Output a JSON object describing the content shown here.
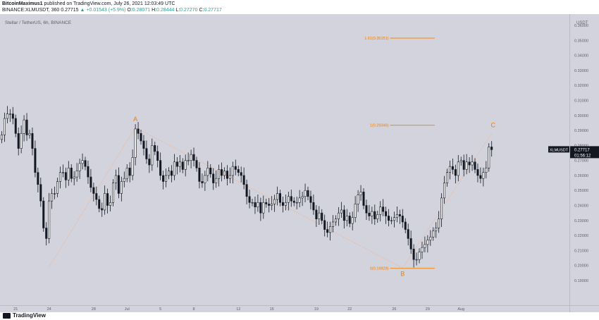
{
  "header": {
    "line1_user": "BitcoinMaximus1",
    "line1_rest": " published on TradingView.com, July 26, 2021 12:03:49 UTC",
    "symbol": "BINANCE:XLMUSDT, 360",
    "last": "0.27715",
    "change": "▲ +0.01543 (+5.9%)",
    "o_label": "O:",
    "o_value": "0.28071",
    "h_label": "H:",
    "h_value": "0.28444",
    "l_label": "L:",
    "l_value": "0.27270",
    "c_label": "C:",
    "c_value": "0.27717"
  },
  "chart_title": "Stellar / TetherUS, 6h, BINANCE",
  "currency_label": "USDT",
  "footer": {
    "logo_text": "TradingView"
  },
  "colors": {
    "background": "#d2d3dc",
    "candle_up_fill": "#ffffff",
    "candle_down_fill": "#131722",
    "wick": "#131722",
    "annotation": "#f57c00",
    "wave_line": "#f5b28a",
    "current_price_bg": "#131722",
    "positive_change": "#26a69a"
  },
  "chart_data": {
    "type": "candlestick",
    "title": "Stellar / TetherUS, 6h, BINANCE",
    "ylim": [
      0.185,
      0.365
    ],
    "y_ticks": [
      "0.36000",
      "0.35000",
      "0.34000",
      "0.33000",
      "0.32000",
      "0.31000",
      "0.30000",
      "0.29000",
      "0.28000",
      "0.27000",
      "0.26000",
      "0.25000",
      "0.24000",
      "0.23000",
      "0.22000",
      "0.21000",
      "0.20000",
      "0.19000"
    ],
    "x_ticks": [
      {
        "label": "21",
        "i": 5
      },
      {
        "label": "24",
        "i": 17
      },
      {
        "label": "28",
        "i": 33
      },
      {
        "label": "Jul",
        "i": 45
      },
      {
        "label": "5",
        "i": 57
      },
      {
        "label": "8",
        "i": 69
      },
      {
        "label": "12",
        "i": 85
      },
      {
        "label": "15",
        "i": 97
      },
      {
        "label": "19",
        "i": 113
      },
      {
        "label": "22",
        "i": 125
      },
      {
        "label": "26",
        "i": 141
      },
      {
        "label": "29",
        "i": 153
      },
      {
        "label": "Aug",
        "i": 165
      }
    ],
    "closes": [
      0.287,
      0.298,
      0.301,
      0.301,
      0.298,
      0.288,
      0.278,
      0.288,
      0.297,
      0.287,
      0.288,
      0.278,
      0.262,
      0.254,
      0.243,
      0.225,
      0.218,
      0.243,
      0.248,
      0.248,
      0.256,
      0.262,
      0.262,
      0.257,
      0.265,
      0.258,
      0.259,
      0.263,
      0.268,
      0.27,
      0.266,
      0.259,
      0.252,
      0.248,
      0.244,
      0.238,
      0.237,
      0.248,
      0.24,
      0.242,
      0.255,
      0.26,
      0.248,
      0.256,
      0.258,
      0.265,
      0.26,
      0.272,
      0.291,
      0.288,
      0.283,
      0.278,
      0.271,
      0.267,
      0.28,
      0.276,
      0.27,
      0.26,
      0.256,
      0.26,
      0.263,
      0.26,
      0.269,
      0.266,
      0.269,
      0.264,
      0.27,
      0.27,
      0.274,
      0.27,
      0.265,
      0.256,
      0.255,
      0.26,
      0.265,
      0.261,
      0.255,
      0.258,
      0.264,
      0.26,
      0.263,
      0.258,
      0.26,
      0.266,
      0.264,
      0.262,
      0.26,
      0.254,
      0.246,
      0.242,
      0.242,
      0.239,
      0.242,
      0.235,
      0.242,
      0.241,
      0.24,
      0.241,
      0.244,
      0.248,
      0.242,
      0.24,
      0.242,
      0.246,
      0.243,
      0.242,
      0.242,
      0.245,
      0.246,
      0.25,
      0.246,
      0.242,
      0.237,
      0.231,
      0.235,
      0.23,
      0.224,
      0.222,
      0.226,
      0.229,
      0.231,
      0.235,
      0.237,
      0.23,
      0.233,
      0.228,
      0.232,
      0.241,
      0.247,
      0.249,
      0.24,
      0.235,
      0.233,
      0.236,
      0.231,
      0.234,
      0.239,
      0.236,
      0.233,
      0.23,
      0.23,
      0.232,
      0.234,
      0.233,
      0.229,
      0.224,
      0.218,
      0.211,
      0.204,
      0.204,
      0.209,
      0.212,
      0.214,
      0.217,
      0.219,
      0.223,
      0.225,
      0.231,
      0.245,
      0.255,
      0.262,
      0.266,
      0.264,
      0.26,
      0.269,
      0.27,
      0.264,
      0.269,
      0.267,
      0.269,
      0.264,
      0.26,
      0.258,
      0.262,
      0.265,
      0.279,
      0.2772
    ],
    "wave_points": [
      {
        "label": "",
        "i": 17,
        "price": 0.199
      },
      {
        "label": "A",
        "i": 48,
        "price": 0.292
      },
      {
        "label": "B",
        "i": 144,
        "price": 0.1983
      },
      {
        "label": "C",
        "i": 176,
        "price": 0.288
      }
    ],
    "fib_levels": [
      {
        "label": "1.61(0.35151)",
        "price": 0.35151,
        "i_start": 140,
        "i_end": 152
      },
      {
        "label": "1(0.29346)",
        "price": 0.29346,
        "i_start": 140,
        "i_end": 152
      },
      {
        "label": "0(0.19828)",
        "price": 0.19828,
        "i_start": 140,
        "i_end": 152
      }
    ],
    "current_price": {
      "symbol": "XLMUSDT",
      "price": "0.27717",
      "countdown": "01:56:12",
      "value": 0.27717
    }
  }
}
